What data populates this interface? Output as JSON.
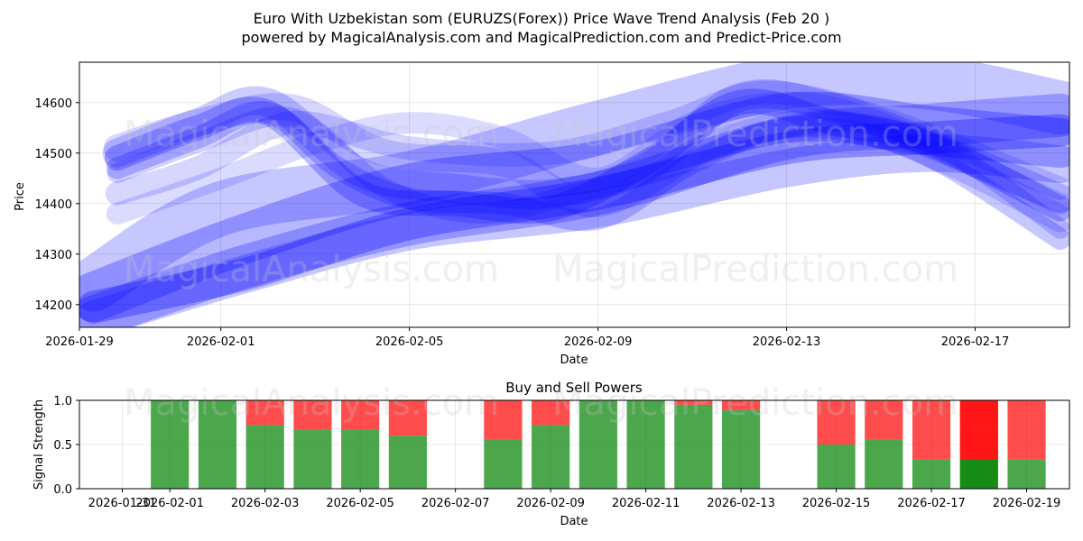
{
  "title": {
    "line1": "Euro With Uzbekistan som (EURUZS(Forex)) Price Wave Trend Analysis (Feb 20 )",
    "line2": "powered by MagicalAnalysis.com and MagicalPrediction.com and Predict-Price.com"
  },
  "watermarks": [
    "MagicalAnalysis.com",
    "MagicalPrediction.com"
  ],
  "colors": {
    "wave": "#0000ff",
    "buy": "#008000",
    "sell": "#ff0000",
    "grid": "#b0b0b0"
  },
  "chart_data": [
    {
      "type": "line",
      "title": "",
      "xlabel": "Date",
      "ylabel": "Price",
      "x_range_days": [
        0,
        21
      ],
      "ylim": [
        14155,
        14680
      ],
      "x_ticks": [
        {
          "day": 0,
          "label": "2026-01-29"
        },
        {
          "day": 3,
          "label": "2026-02-01"
        },
        {
          "day": 7,
          "label": "2026-02-05"
        },
        {
          "day": 11,
          "label": "2026-02-09"
        },
        {
          "day": 15,
          "label": "2026-02-13"
        },
        {
          "day": 19,
          "label": "2026-02-17"
        }
      ],
      "y_ticks": [
        14200,
        14300,
        14400,
        14500,
        14600
      ],
      "grid": true,
      "series": [
        {
          "name": "wave-1",
          "width": 55,
          "alpha": 0.28,
          "x": [
            0.3,
            3.5,
            7,
            11,
            15,
            18,
            20.8
          ],
          "y": [
            14215,
            14330,
            14430,
            14475,
            14570,
            14545,
            14520
          ]
        },
        {
          "name": "wave-2",
          "width": 48,
          "alpha": 0.25,
          "x": [
            0.3,
            3.5,
            7,
            11,
            15,
            18,
            20.8
          ],
          "y": [
            14175,
            14275,
            14360,
            14420,
            14530,
            14555,
            14575
          ]
        },
        {
          "name": "wave-3",
          "width": 60,
          "alpha": 0.22,
          "x": [
            0.3,
            3,
            7,
            11,
            15,
            18,
            20.8
          ],
          "y": [
            14240,
            14390,
            14450,
            14550,
            14640,
            14640,
            14590
          ]
        },
        {
          "name": "wave-4",
          "width": 36,
          "alpha": 0.3,
          "x": [
            0.3,
            3.5,
            7,
            11,
            15,
            18,
            20.8
          ],
          "y": [
            14195,
            14260,
            14360,
            14420,
            14510,
            14530,
            14545
          ]
        },
        {
          "name": "wave-5",
          "width": 42,
          "alpha": 0.22,
          "x": [
            0.3,
            3.5,
            7,
            11,
            15,
            18,
            20.8
          ],
          "y": [
            14170,
            14260,
            14345,
            14390,
            14470,
            14500,
            14478
          ]
        },
        {
          "name": "wave-6",
          "width": 28,
          "alpha": 0.26,
          "x": [
            0.8,
            2.5,
            4,
            6,
            8,
            10,
            12,
            14,
            16,
            18,
            20.8
          ],
          "y": [
            14490,
            14550,
            14580,
            14420,
            14400,
            14390,
            14480,
            14600,
            14560,
            14520,
            14390
          ]
        },
        {
          "name": "wave-7",
          "width": 24,
          "alpha": 0.22,
          "x": [
            0.8,
            2.5,
            4,
            5.5,
            7,
            9,
            11,
            13,
            15,
            17,
            18.5,
            20.8
          ],
          "y": [
            14470,
            14530,
            14580,
            14470,
            14410,
            14400,
            14370,
            14480,
            14550,
            14530,
            14470,
            14330
          ]
        },
        {
          "name": "wave-8",
          "width": 32,
          "alpha": 0.2,
          "x": [
            0.8,
            2.5,
            4,
            6,
            8,
            10,
            12,
            14,
            16,
            18,
            20.8
          ],
          "y": [
            14500,
            14560,
            14600,
            14460,
            14430,
            14420,
            14470,
            14610,
            14590,
            14520,
            14410
          ]
        },
        {
          "name": "wave-9",
          "width": 26,
          "alpha": 0.16,
          "x": [
            0.8,
            2.5,
            4.5,
            7,
            10,
            12.5,
            14.5,
            17,
            20.8
          ],
          "y": [
            14420,
            14470,
            14560,
            14510,
            14500,
            14560,
            14620,
            14570,
            14430
          ]
        },
        {
          "name": "wave-10",
          "width": 24,
          "alpha": 0.14,
          "x": [
            0.8,
            3,
            5,
            7,
            9,
            11,
            13,
            15,
            17,
            20.8
          ],
          "y": [
            14380,
            14450,
            14520,
            14560,
            14530,
            14450,
            14560,
            14600,
            14560,
            14400
          ]
        },
        {
          "name": "wave-11",
          "width": 30,
          "alpha": 0.16,
          "x": [
            0.8,
            2.5,
            4.5,
            6.5,
            9,
            11,
            13.5,
            16,
            18.5,
            20.8
          ],
          "y": [
            14510,
            14560,
            14590,
            14500,
            14480,
            14400,
            14520,
            14560,
            14480,
            14370
          ]
        },
        {
          "name": "wave-12",
          "width": 22,
          "alpha": 0.18,
          "x": [
            0.8,
            2.5,
            4.5,
            6.5,
            8.5,
            10.5,
            12.5,
            14.5,
            16.5,
            18.5,
            20.8
          ],
          "y": [
            14460,
            14520,
            14570,
            14430,
            14380,
            14420,
            14470,
            14540,
            14560,
            14500,
            14350
          ]
        }
      ]
    },
    {
      "type": "bar",
      "title": "Buy and Sell Powers",
      "xlabel": "Date",
      "ylabel": "Signal Strength",
      "x_range_days": [
        -0.9,
        19.9
      ],
      "ylim": [
        0,
        1
      ],
      "y_ticks": [
        0.0,
        0.5,
        1.0
      ],
      "x_ticks": [
        {
          "day": 0,
          "label": "2026-01-31"
        },
        {
          "day": 1,
          "label": "2026-02-01"
        },
        {
          "day": 3,
          "label": "2026-02-03"
        },
        {
          "day": 5,
          "label": "2026-02-05"
        },
        {
          "day": 7,
          "label": "2026-02-07"
        },
        {
          "day": 9,
          "label": "2026-02-09"
        },
        {
          "day": 11,
          "label": "2026-02-11"
        },
        {
          "day": 13,
          "label": "2026-02-13"
        },
        {
          "day": 15,
          "label": "2026-02-15"
        },
        {
          "day": 17,
          "label": "2026-02-17"
        },
        {
          "day": 19,
          "label": "2026-02-19"
        }
      ],
      "grid": true,
      "bars": [
        {
          "day": 1,
          "buy": 1.0,
          "sell": 0.0
        },
        {
          "day": 2,
          "buy": 1.0,
          "sell": 0.0
        },
        {
          "day": 3,
          "buy": 0.72,
          "sell": 0.28
        },
        {
          "day": 4,
          "buy": 0.67,
          "sell": 0.33
        },
        {
          "day": 5,
          "buy": 0.67,
          "sell": 0.33
        },
        {
          "day": 6,
          "buy": 0.6,
          "sell": 0.4
        },
        {
          "day": 8,
          "buy": 0.56,
          "sell": 0.44
        },
        {
          "day": 9,
          "buy": 0.72,
          "sell": 0.28
        },
        {
          "day": 10,
          "buy": 1.0,
          "sell": 0.0
        },
        {
          "day": 11,
          "buy": 1.0,
          "sell": 0.0
        },
        {
          "day": 12,
          "buy": 0.95,
          "sell": 0.05
        },
        {
          "day": 13,
          "buy": 0.89,
          "sell": 0.11
        },
        {
          "day": 15,
          "buy": 0.5,
          "sell": 0.5
        },
        {
          "day": 16,
          "buy": 0.56,
          "sell": 0.44
        },
        {
          "day": 17,
          "buy": 0.33,
          "sell": 0.67
        },
        {
          "day": 18,
          "buy": 0.33,
          "sell": 0.67,
          "extra_buy": 0.33,
          "extra_sell": 0.33,
          "overlay": true
        },
        {
          "day": 19,
          "buy": 0.33,
          "sell": 0.67
        }
      ]
    }
  ]
}
